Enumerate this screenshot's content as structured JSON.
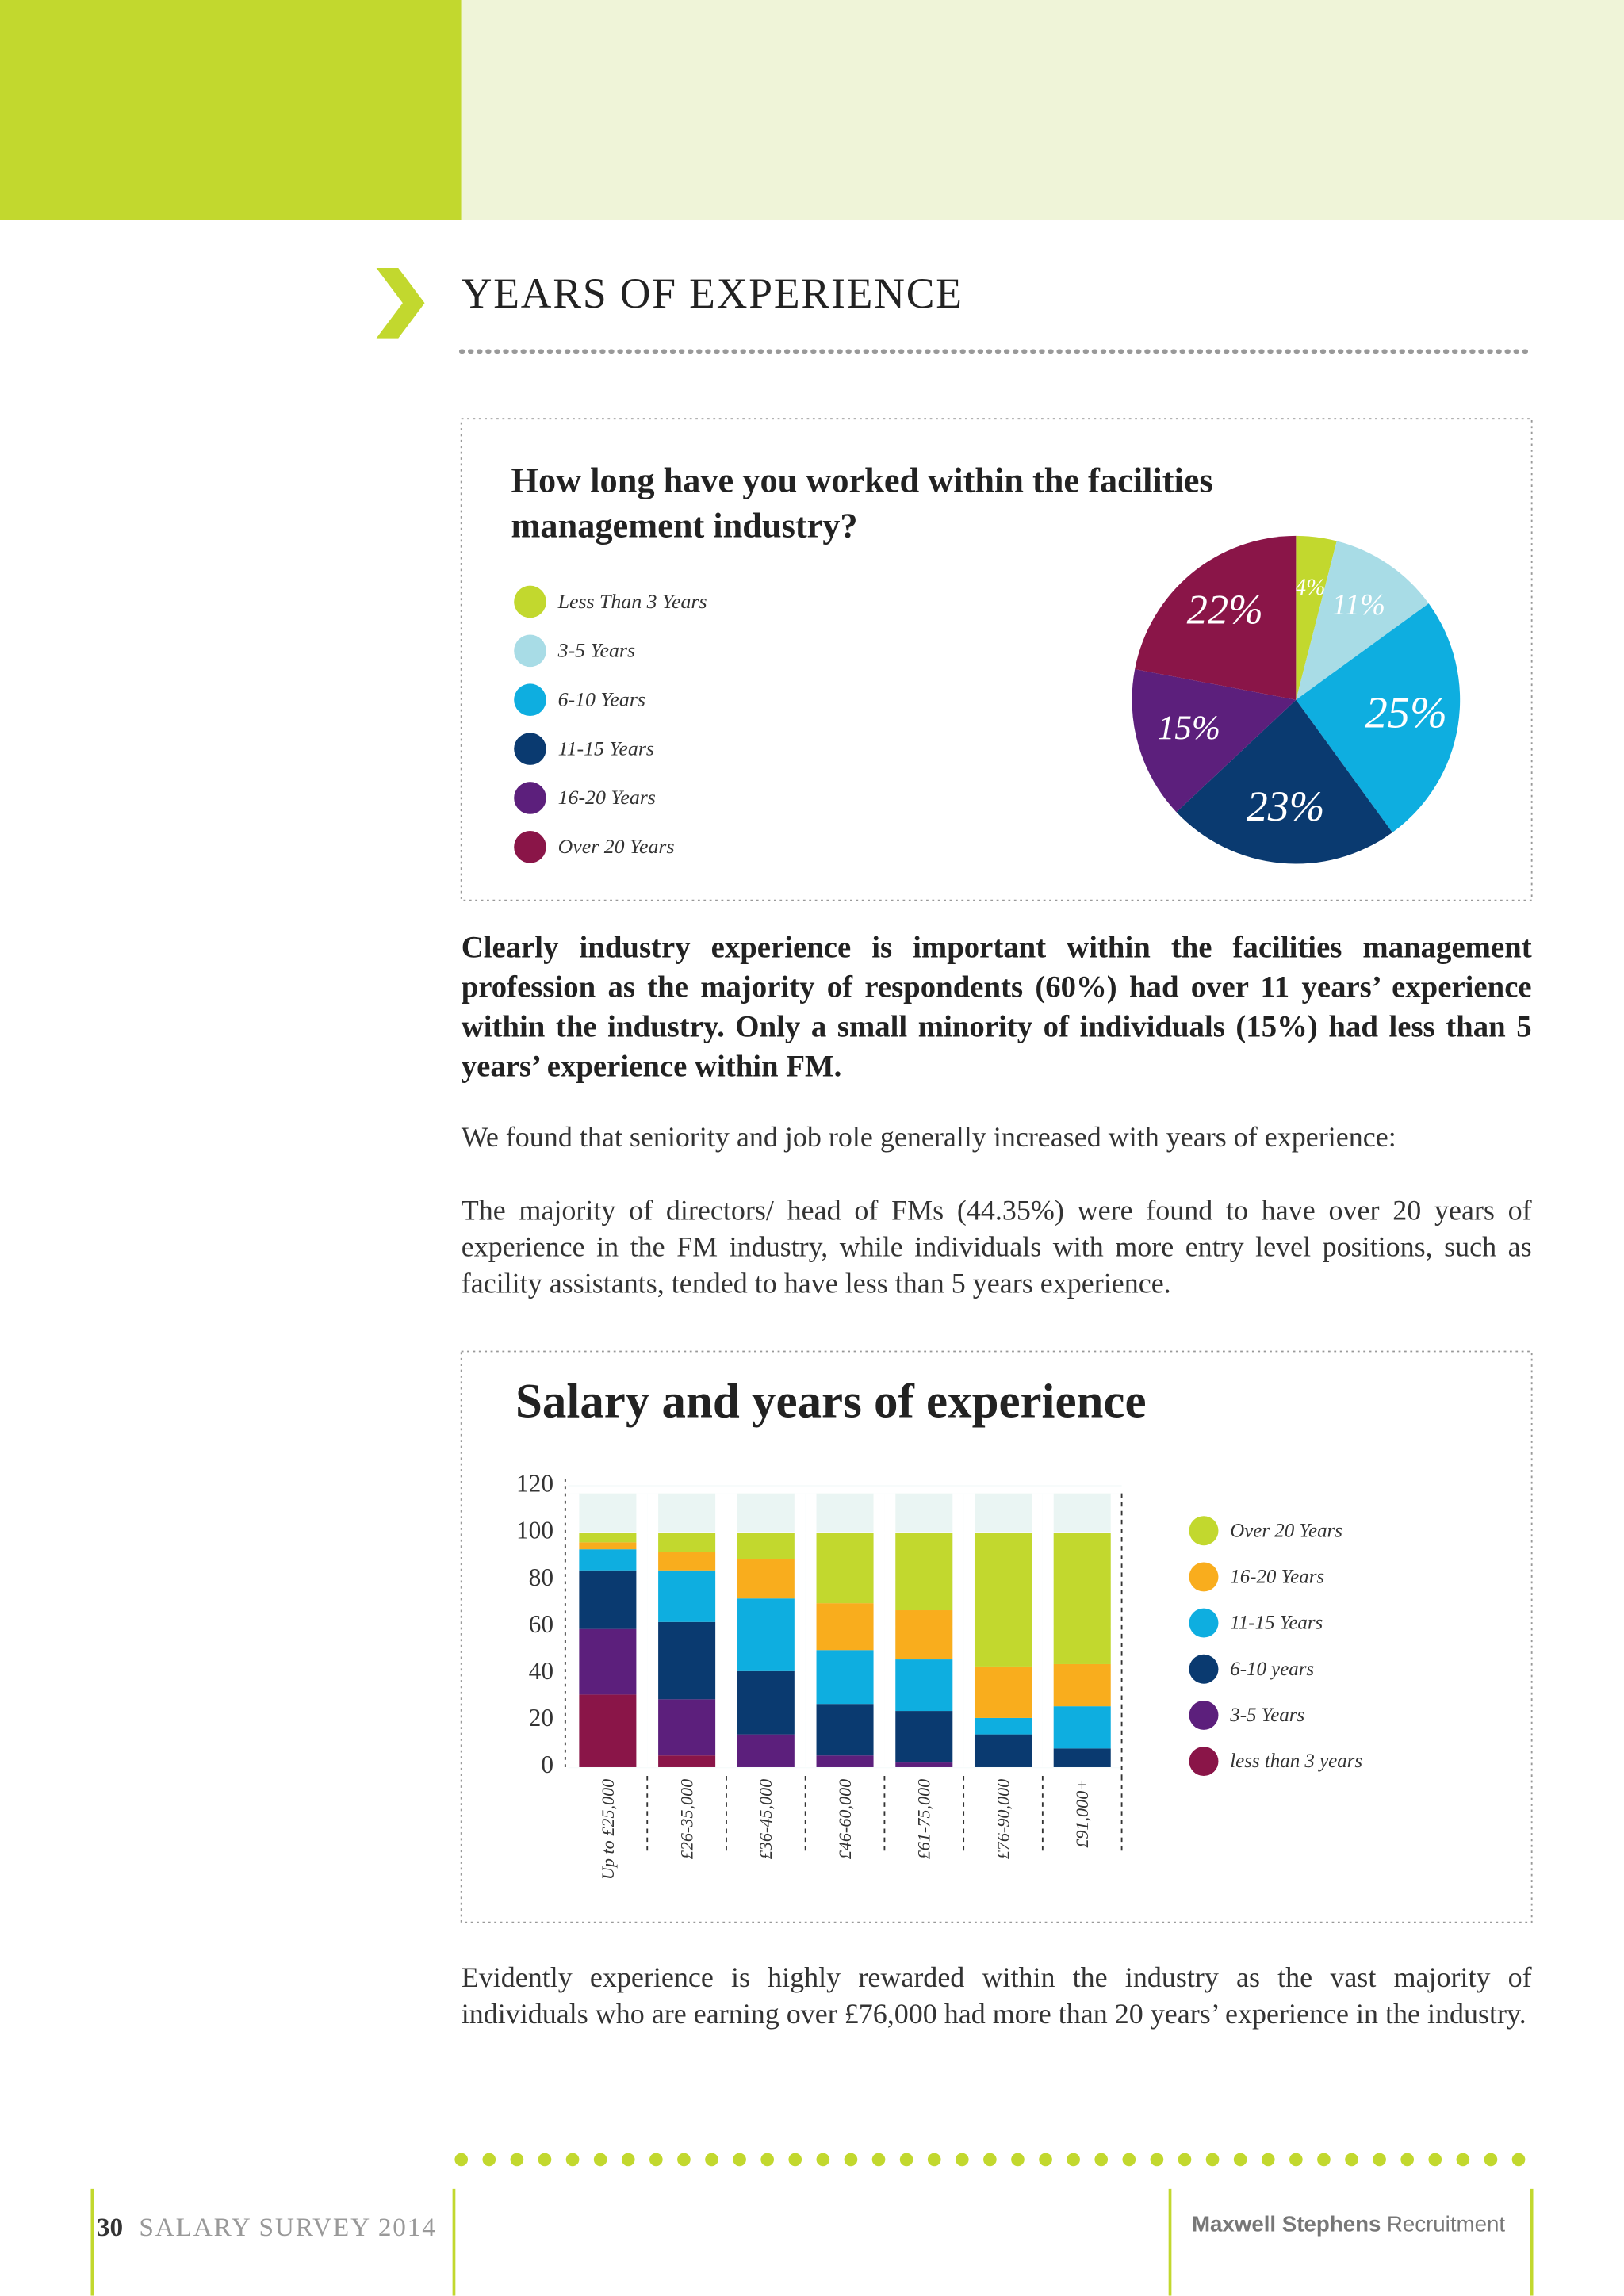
{
  "header": {
    "section_title": "YEARS OF EXPERIENCE"
  },
  "chart_data": [
    {
      "type": "pie",
      "title": "How long have you worked within the facilities management industry?",
      "categories": [
        "Less Than 3 Years",
        "3-5 Years",
        "6-10 Years",
        "11-15 Years",
        "16-20 Years",
        "Over 20 Years"
      ],
      "values": [
        4,
        11,
        25,
        23,
        15,
        22
      ],
      "value_labels": [
        "4%",
        "11%",
        "25%",
        "23%",
        "15%",
        "22%"
      ],
      "colors": [
        "#c2d82e",
        "#a8dce6",
        "#0eaee0",
        "#0a3a70",
        "#5c1f7c",
        "#8a1548"
      ]
    },
    {
      "type": "bar",
      "stacked": true,
      "title": "Salary and years of experience",
      "categories": [
        "Up to £25,000",
        "£26-35,000",
        "£36-45,000",
        "£46-60,000",
        "£61-75,000",
        "£76-90,000",
        "£91,000+"
      ],
      "series": [
        {
          "name": "less than 3 years",
          "color": "#8a1548",
          "values": [
            31,
            5,
            0,
            0,
            0,
            0,
            0
          ]
        },
        {
          "name": "3-5 Years",
          "color": "#5c1f7c",
          "values": [
            28,
            24,
            14,
            5,
            2,
            0,
            0
          ]
        },
        {
          "name": "6-10 years",
          "color": "#0a3a70",
          "values": [
            25,
            33,
            27,
            22,
            22,
            14,
            8
          ]
        },
        {
          "name": "11-15 Years",
          "color": "#0eaee0",
          "values": [
            9,
            22,
            31,
            23,
            22,
            7,
            18
          ]
        },
        {
          "name": "16-20 Years",
          "color": "#f9ad1d",
          "values": [
            3,
            8,
            17,
            20,
            21,
            22,
            18
          ]
        },
        {
          "name": "Over 20 Years",
          "color": "#c2d82e",
          "values": [
            4,
            8,
            11,
            30,
            33,
            57,
            56
          ]
        }
      ],
      "ylim": [
        0,
        120
      ],
      "yticks": [
        0,
        20,
        40,
        60,
        80,
        100,
        120
      ],
      "grid": true
    }
  ],
  "paragraphs": [
    "Clearly industry experience is important within the facilities management profession as the majority of respondents (60%) had over 11 years’ experience within the industry. Only a small minority of individuals (15%) had less than 5 years’ experience within FM.",
    "We found that seniority and job role generally increased with years of experience:",
    "The majority of directors/ head of FMs (44.35%) were found to have over 20 years of experience in the FM industry, while individuals with more entry level positions, such as facility assistants, tended to have less than 5 years experience.",
    "Evidently experience is highly rewarded within the industry as the vast majority of individuals who are earning over £76,000 had more than 20 years’ experience in the industry."
  ],
  "footer": {
    "page_number": "30",
    "publication": "SALARY SURVEY 2014",
    "brand": "Maxwell Stephens",
    "brand_suffix": "Recruitment"
  }
}
